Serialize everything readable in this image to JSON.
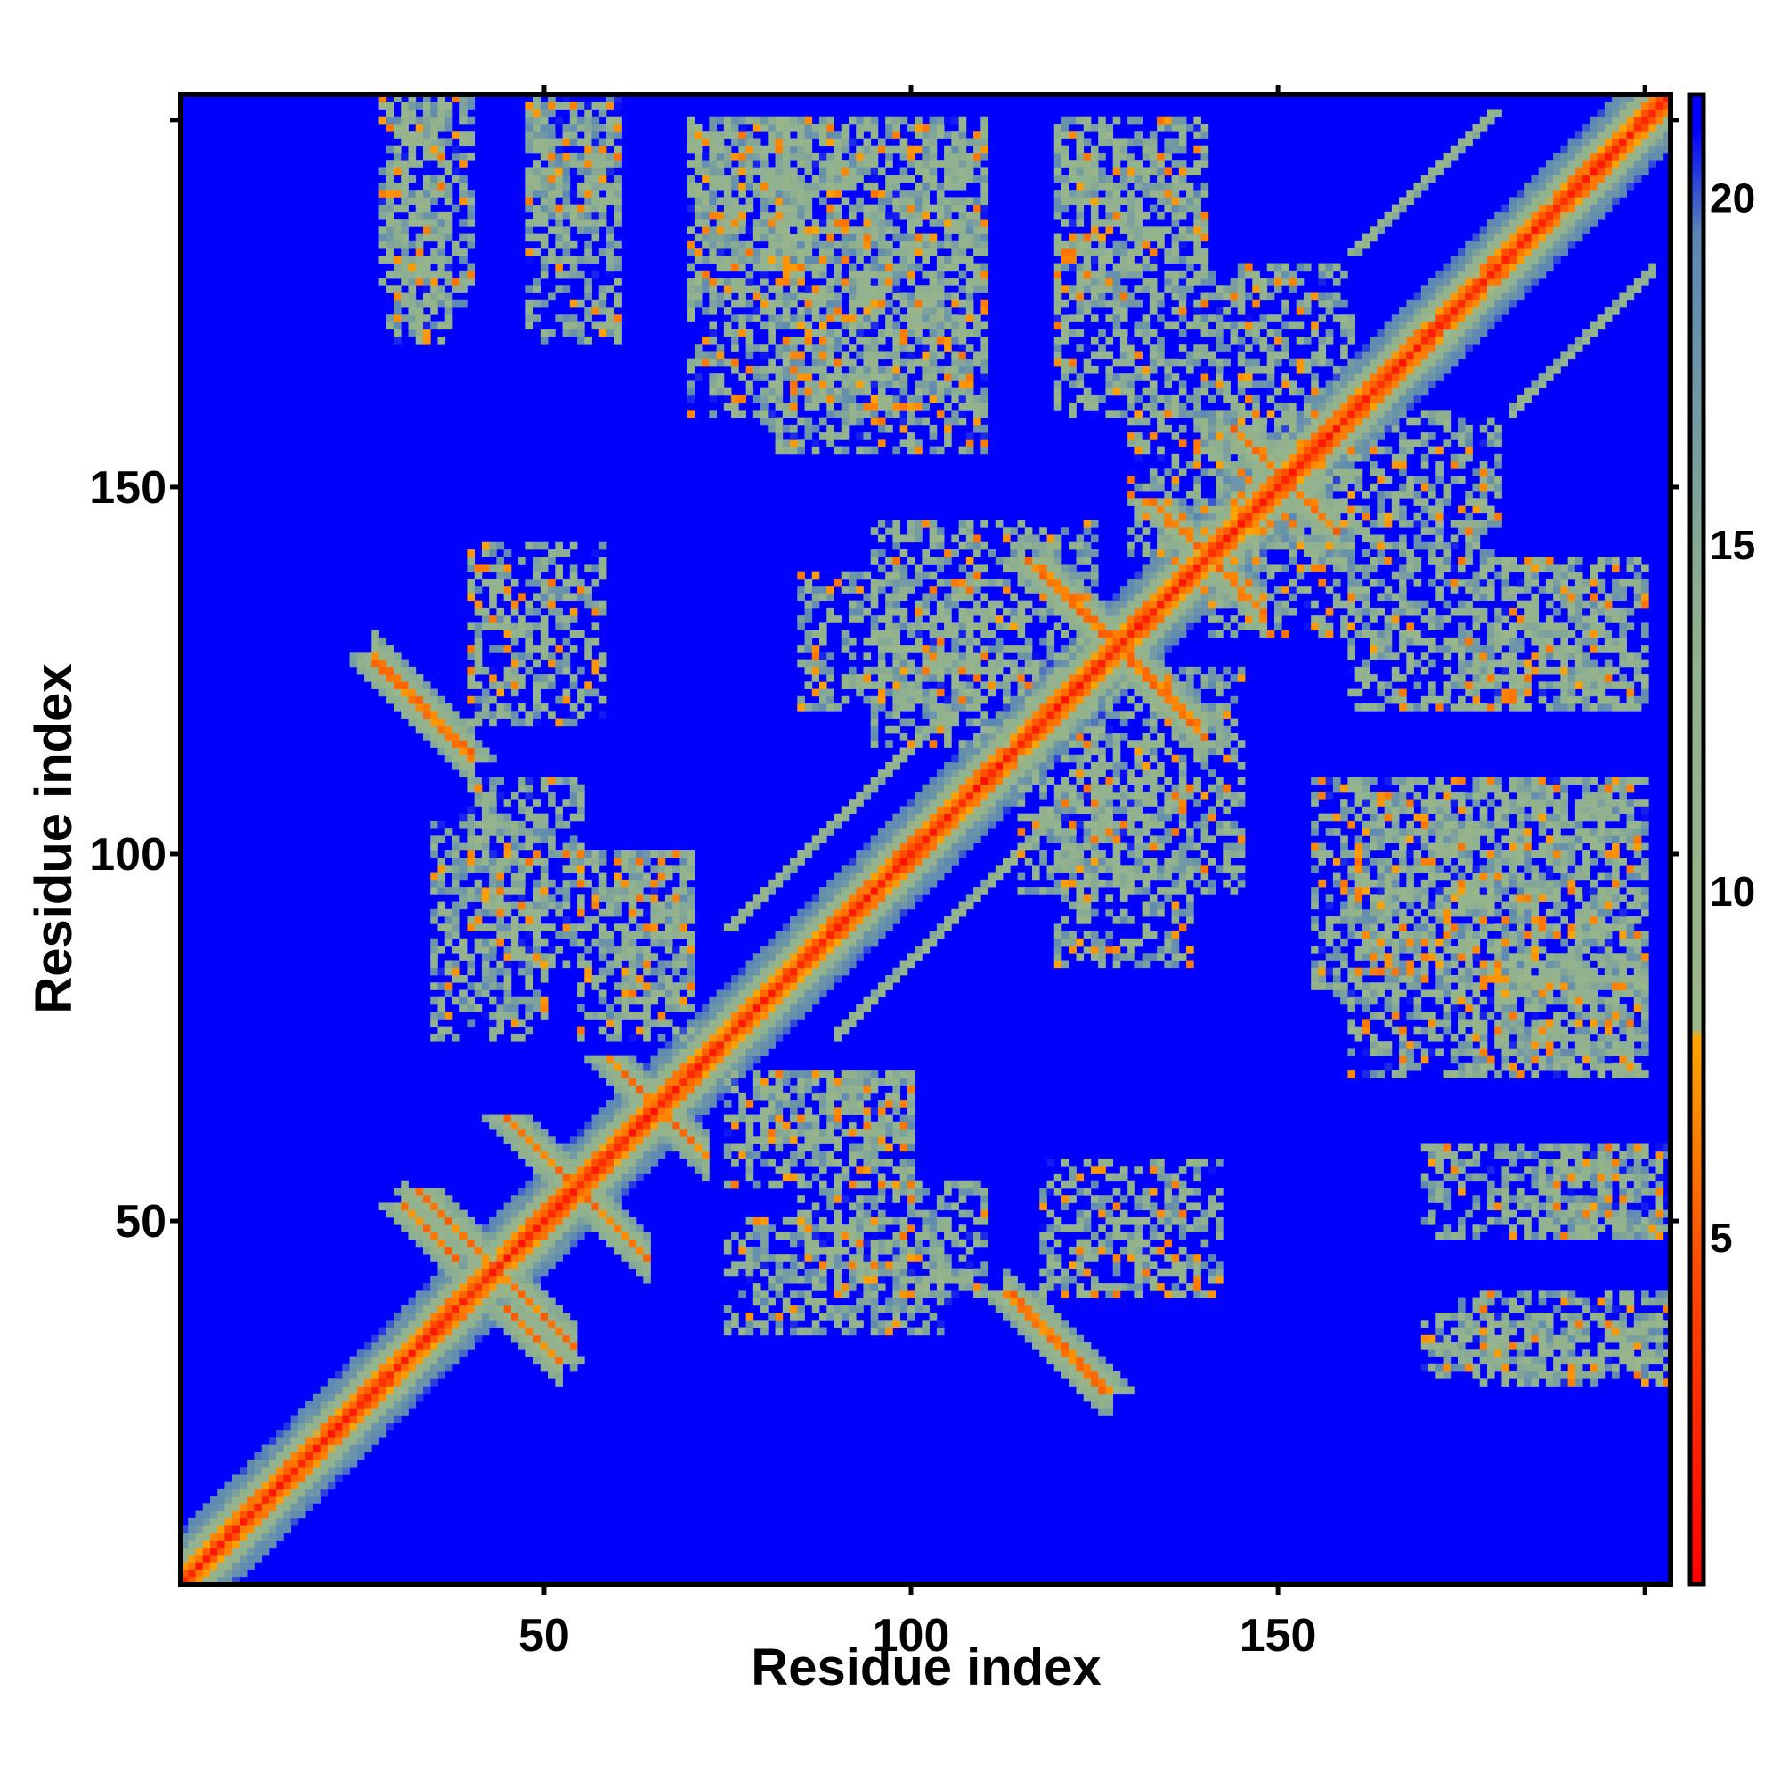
{
  "chart_data": {
    "type": "heatmap",
    "title": "",
    "xlabel": "Residue index",
    "ylabel": "Residue index",
    "xlim": [
      1,
      203
    ],
    "ylim": [
      1,
      203
    ],
    "xticks": [
      50,
      100,
      150
    ],
    "yticks": [
      50,
      100,
      150
    ],
    "colorbar": {
      "ticks": [
        5,
        10,
        15,
        20
      ],
      "range": [
        0,
        21.5
      ],
      "stops": [
        {
          "value": 0,
          "color": "#ff0000"
        },
        {
          "value": 4.5,
          "color": "#ff4a00"
        },
        {
          "value": 7.9,
          "color": "#ffa500"
        },
        {
          "value": 8.0,
          "color": "#9db888"
        },
        {
          "value": 14,
          "color": "#8fb090"
        },
        {
          "value": 19.5,
          "color": "#5a86b5"
        },
        {
          "value": 21.0,
          "color": "#0000ff"
        }
      ]
    },
    "background_color": "#0000ff",
    "matrix_size": 203,
    "symmetric": true,
    "contact_features": [
      {
        "type": "diagonal",
        "from": 1,
        "to": 203
      },
      {
        "type": "antiparallel",
        "a0": 27,
        "b0": 126,
        "len": 14
      },
      {
        "type": "antiparallel",
        "a0": 33,
        "b0": 54,
        "len": 10
      },
      {
        "type": "antiparallel",
        "a0": 45,
        "b0": 38,
        "len": 8
      },
      {
        "type": "antiparallel",
        "a0": 45,
        "b0": 64,
        "len": 9
      },
      {
        "type": "antiparallel",
        "a0": 59,
        "b0": 72,
        "len": 9
      },
      {
        "type": "antiparallel",
        "a0": 114,
        "b0": 40,
        "len": 14
      },
      {
        "type": "antiparallel",
        "a0": 116,
        "b0": 140,
        "len": 11
      },
      {
        "type": "antiparallel",
        "a0": 129,
        "b0": 128,
        "len": 11
      },
      {
        "type": "antiparallel",
        "a0": 133,
        "b0": 148,
        "len": 8
      },
      {
        "type": "antiparallel",
        "a0": 144,
        "b0": 158,
        "len": 12
      },
      {
        "type": "parallel",
        "a0": 75,
        "b0": 90,
        "len": 30
      },
      {
        "type": "parallel",
        "a0": 160,
        "b0": 182,
        "len": 20
      },
      {
        "type": "diffuse",
        "x": [
          29,
          37
        ],
        "y": [
          170,
          202
        ]
      },
      {
        "type": "diffuse",
        "x": [
          48,
          60
        ],
        "y": [
          170,
          202
        ]
      },
      {
        "type": "diffuse",
        "x": [
          70,
          110
        ],
        "y": [
          160,
          200
        ]
      },
      {
        "type": "diffuse",
        "x": [
          120,
          140
        ],
        "y": [
          160,
          200
        ]
      },
      {
        "type": "diffuse",
        "x": [
          140,
          160
        ],
        "y": [
          130,
          180
        ]
      },
      {
        "type": "diffuse",
        "x": [
          35,
          50
        ],
        "y": [
          75,
          105
        ]
      },
      {
        "type": "diffuse",
        "x": [
          55,
          70
        ],
        "y": [
          75,
          100
        ]
      },
      {
        "type": "diffuse",
        "x": [
          80,
          100
        ],
        "y": [
          60,
          70
        ]
      },
      {
        "type": "diffuse",
        "x": [
          85,
          110
        ],
        "y": [
          40,
          55
        ]
      },
      {
        "type": "diffuse",
        "x": [
          120,
          138
        ],
        "y": [
          85,
          110
        ]
      },
      {
        "type": "diffuse",
        "x": [
          155,
          200
        ],
        "y": [
          80,
          110
        ]
      },
      {
        "type": "diffuse",
        "x": [
          175,
          200
        ],
        "y": [
          70,
          85
        ]
      },
      {
        "type": "diffuse",
        "x": [
          185,
          203
        ],
        "y": [
          48,
          60
        ]
      },
      {
        "type": "diffuse",
        "x": [
          175,
          203
        ],
        "y": [
          28,
          40
        ]
      },
      {
        "type": "diffuse",
        "x": [
          95,
          125
        ],
        "y": [
          115,
          145
        ]
      },
      {
        "type": "diffuse",
        "x": [
          175,
          195
        ],
        "y": [
          120,
          140
        ]
      },
      {
        "type": "diffuse",
        "x": [
          40,
          58
        ],
        "y": [
          118,
          142
        ]
      }
    ]
  }
}
